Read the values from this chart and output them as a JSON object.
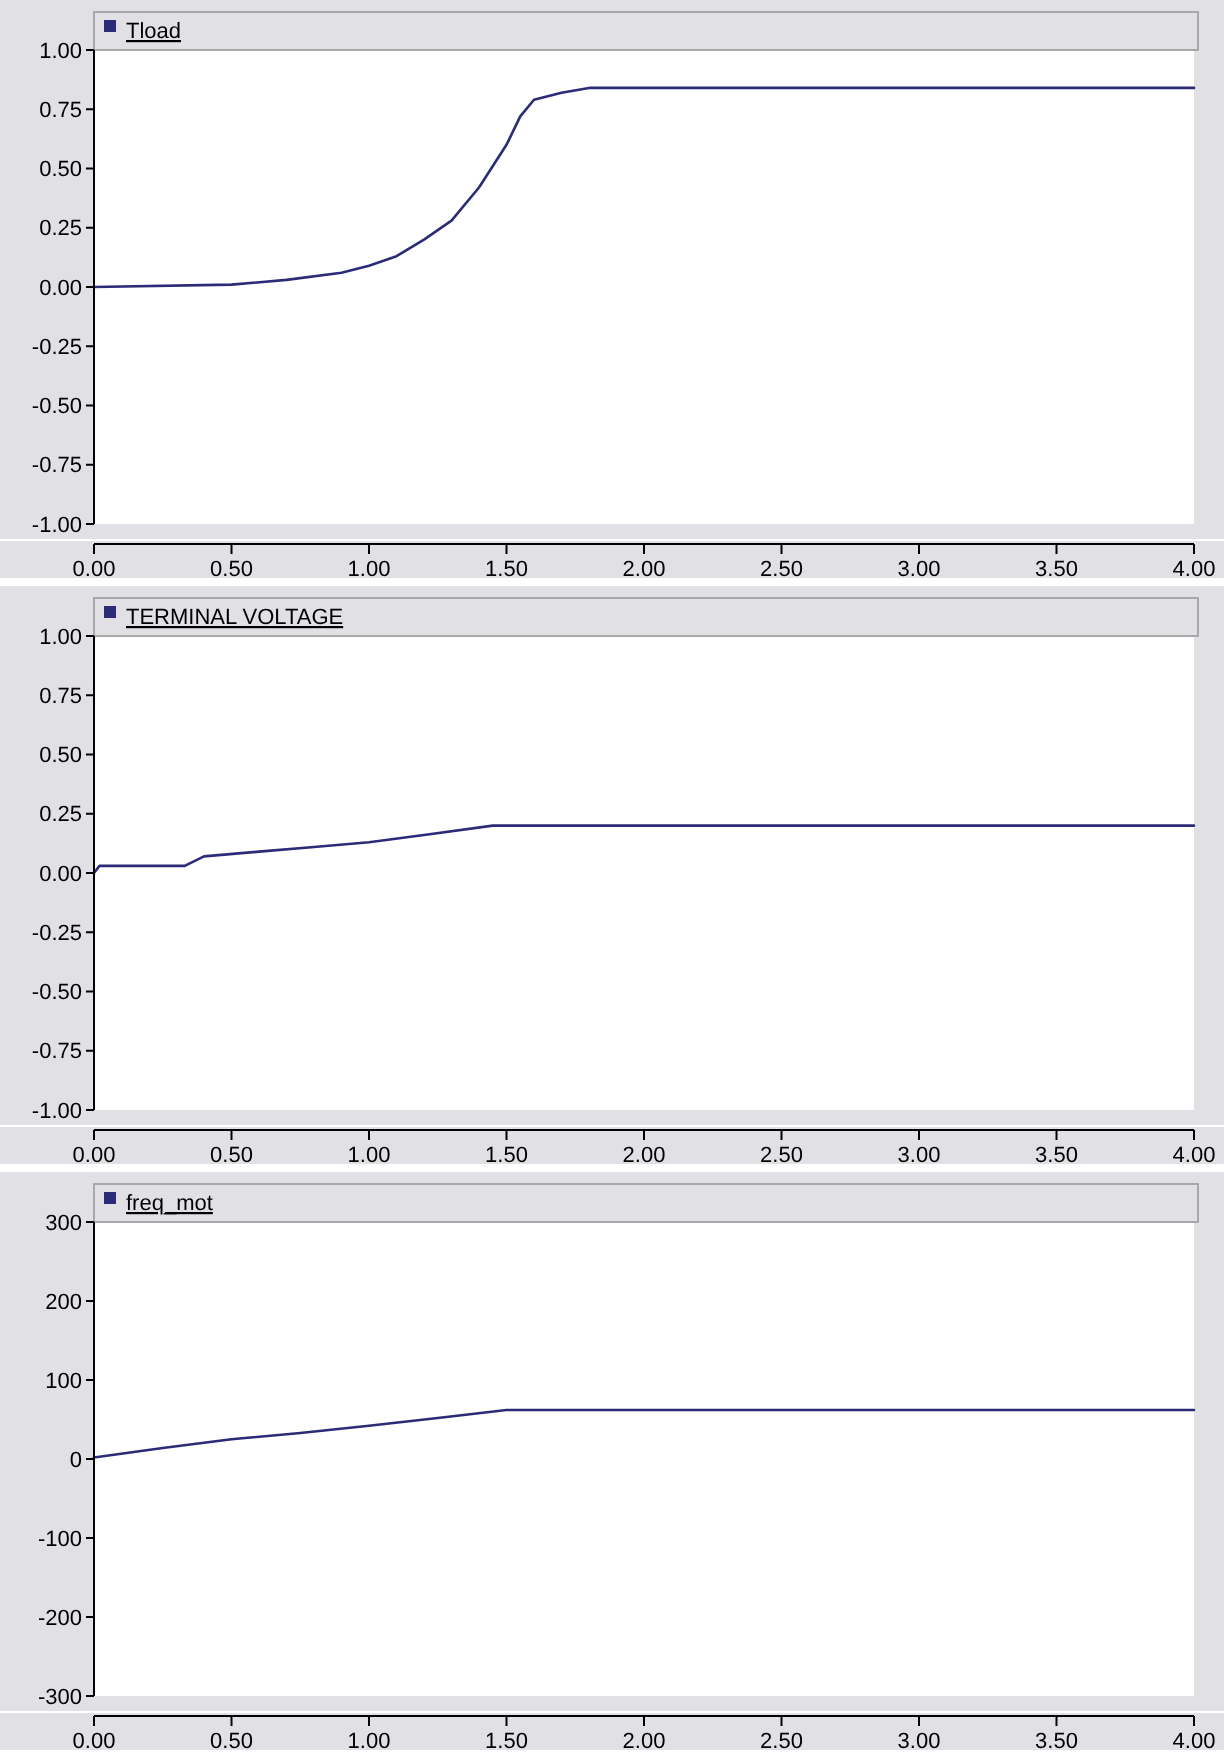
{
  "chart_data": [
    {
      "type": "line",
      "x": [
        0,
        0.5,
        0.7,
        0.9,
        1.0,
        1.1,
        1.2,
        1.3,
        1.4,
        1.5,
        1.55,
        1.6,
        1.7,
        1.8,
        4.0
      ],
      "series": [
        {
          "name": "Tload",
          "color": "#2b2b78",
          "values": [
            0,
            0.01,
            0.03,
            0.06,
            0.09,
            0.13,
            0.2,
            0.28,
            0.42,
            0.6,
            0.72,
            0.79,
            0.82,
            0.84,
            0.84
          ]
        }
      ],
      "xlim": [
        0,
        4
      ],
      "xticks": [
        {
          "value": 0,
          "label": "0.00"
        },
        {
          "value": 0.5,
          "label": "0.50"
        },
        {
          "value": 1,
          "label": "1.00"
        },
        {
          "value": 1.5,
          "label": "1.50"
        },
        {
          "value": 2,
          "label": "2.00"
        },
        {
          "value": 2.5,
          "label": "2.50"
        },
        {
          "value": 3,
          "label": "3.00"
        },
        {
          "value": 3.5,
          "label": "3.50"
        },
        {
          "value": 4,
          "label": "4.00"
        }
      ],
      "ylim": [
        -1,
        1
      ],
      "yticks": [
        {
          "value": -1,
          "label": "-1.00"
        },
        {
          "value": -0.75,
          "label": "-0.75"
        },
        {
          "value": -0.5,
          "label": "-0.50"
        },
        {
          "value": -0.25,
          "label": "-0.25"
        },
        {
          "value": 0,
          "label": "0.00"
        },
        {
          "value": 0.25,
          "label": "0.25"
        },
        {
          "value": 0.5,
          "label": "0.50"
        },
        {
          "value": 0.75,
          "label": "0.75"
        },
        {
          "value": 1,
          "label": "1.00"
        }
      ],
      "legend": "top left",
      "grid": false
    },
    {
      "type": "line",
      "x": [
        0,
        0.02,
        0.33,
        0.4,
        0.6,
        0.8,
        1.0,
        1.2,
        1.45,
        4.0
      ],
      "series": [
        {
          "name": "TERMINAL VOLTAGE",
          "color": "#2b2b78",
          "values": [
            0,
            0.03,
            0.03,
            0.07,
            0.09,
            0.11,
            0.13,
            0.16,
            0.2,
            0.2
          ]
        }
      ],
      "xlim": [
        0,
        4
      ],
      "xticks": [
        {
          "value": 0,
          "label": "0.00"
        },
        {
          "value": 0.5,
          "label": "0.50"
        },
        {
          "value": 1,
          "label": "1.00"
        },
        {
          "value": 1.5,
          "label": "1.50"
        },
        {
          "value": 2,
          "label": "2.00"
        },
        {
          "value": 2.5,
          "label": "2.50"
        },
        {
          "value": 3,
          "label": "3.00"
        },
        {
          "value": 3.5,
          "label": "3.50"
        },
        {
          "value": 4,
          "label": "4.00"
        }
      ],
      "ylim": [
        -1,
        1
      ],
      "yticks": [
        {
          "value": -1,
          "label": "-1.00"
        },
        {
          "value": -0.75,
          "label": "-0.75"
        },
        {
          "value": -0.5,
          "label": "-0.50"
        },
        {
          "value": -0.25,
          "label": "-0.25"
        },
        {
          "value": 0,
          "label": "0.00"
        },
        {
          "value": 0.25,
          "label": "0.25"
        },
        {
          "value": 0.5,
          "label": "0.50"
        },
        {
          "value": 0.75,
          "label": "0.75"
        },
        {
          "value": 1,
          "label": "1.00"
        }
      ],
      "legend": "top left",
      "grid": false
    },
    {
      "type": "line",
      "x": [
        0,
        0.25,
        0.5,
        0.75,
        1.0,
        1.25,
        1.5,
        2.0,
        4.0
      ],
      "series": [
        {
          "name": "freq_mot",
          "color": "#2b2b78",
          "values": [
            2,
            14,
            25,
            33,
            42,
            52,
            62,
            62,
            62
          ]
        }
      ],
      "xlim": [
        0,
        4
      ],
      "xticks": [
        {
          "value": 0,
          "label": "0.00"
        },
        {
          "value": 0.5,
          "label": "0.50"
        },
        {
          "value": 1,
          "label": "1.00"
        },
        {
          "value": 1.5,
          "label": "1.50"
        },
        {
          "value": 2,
          "label": "2.00"
        },
        {
          "value": 2.5,
          "label": "2.50"
        },
        {
          "value": 3,
          "label": "3.00"
        },
        {
          "value": 3.5,
          "label": "3.50"
        },
        {
          "value": 4,
          "label": "4.00"
        }
      ],
      "ylim": [
        -300,
        300
      ],
      "yticks": [
        -300,
        -200,
        -100,
        0,
        100,
        200,
        300
      ],
      "legend": "top left",
      "grid": false
    }
  ]
}
